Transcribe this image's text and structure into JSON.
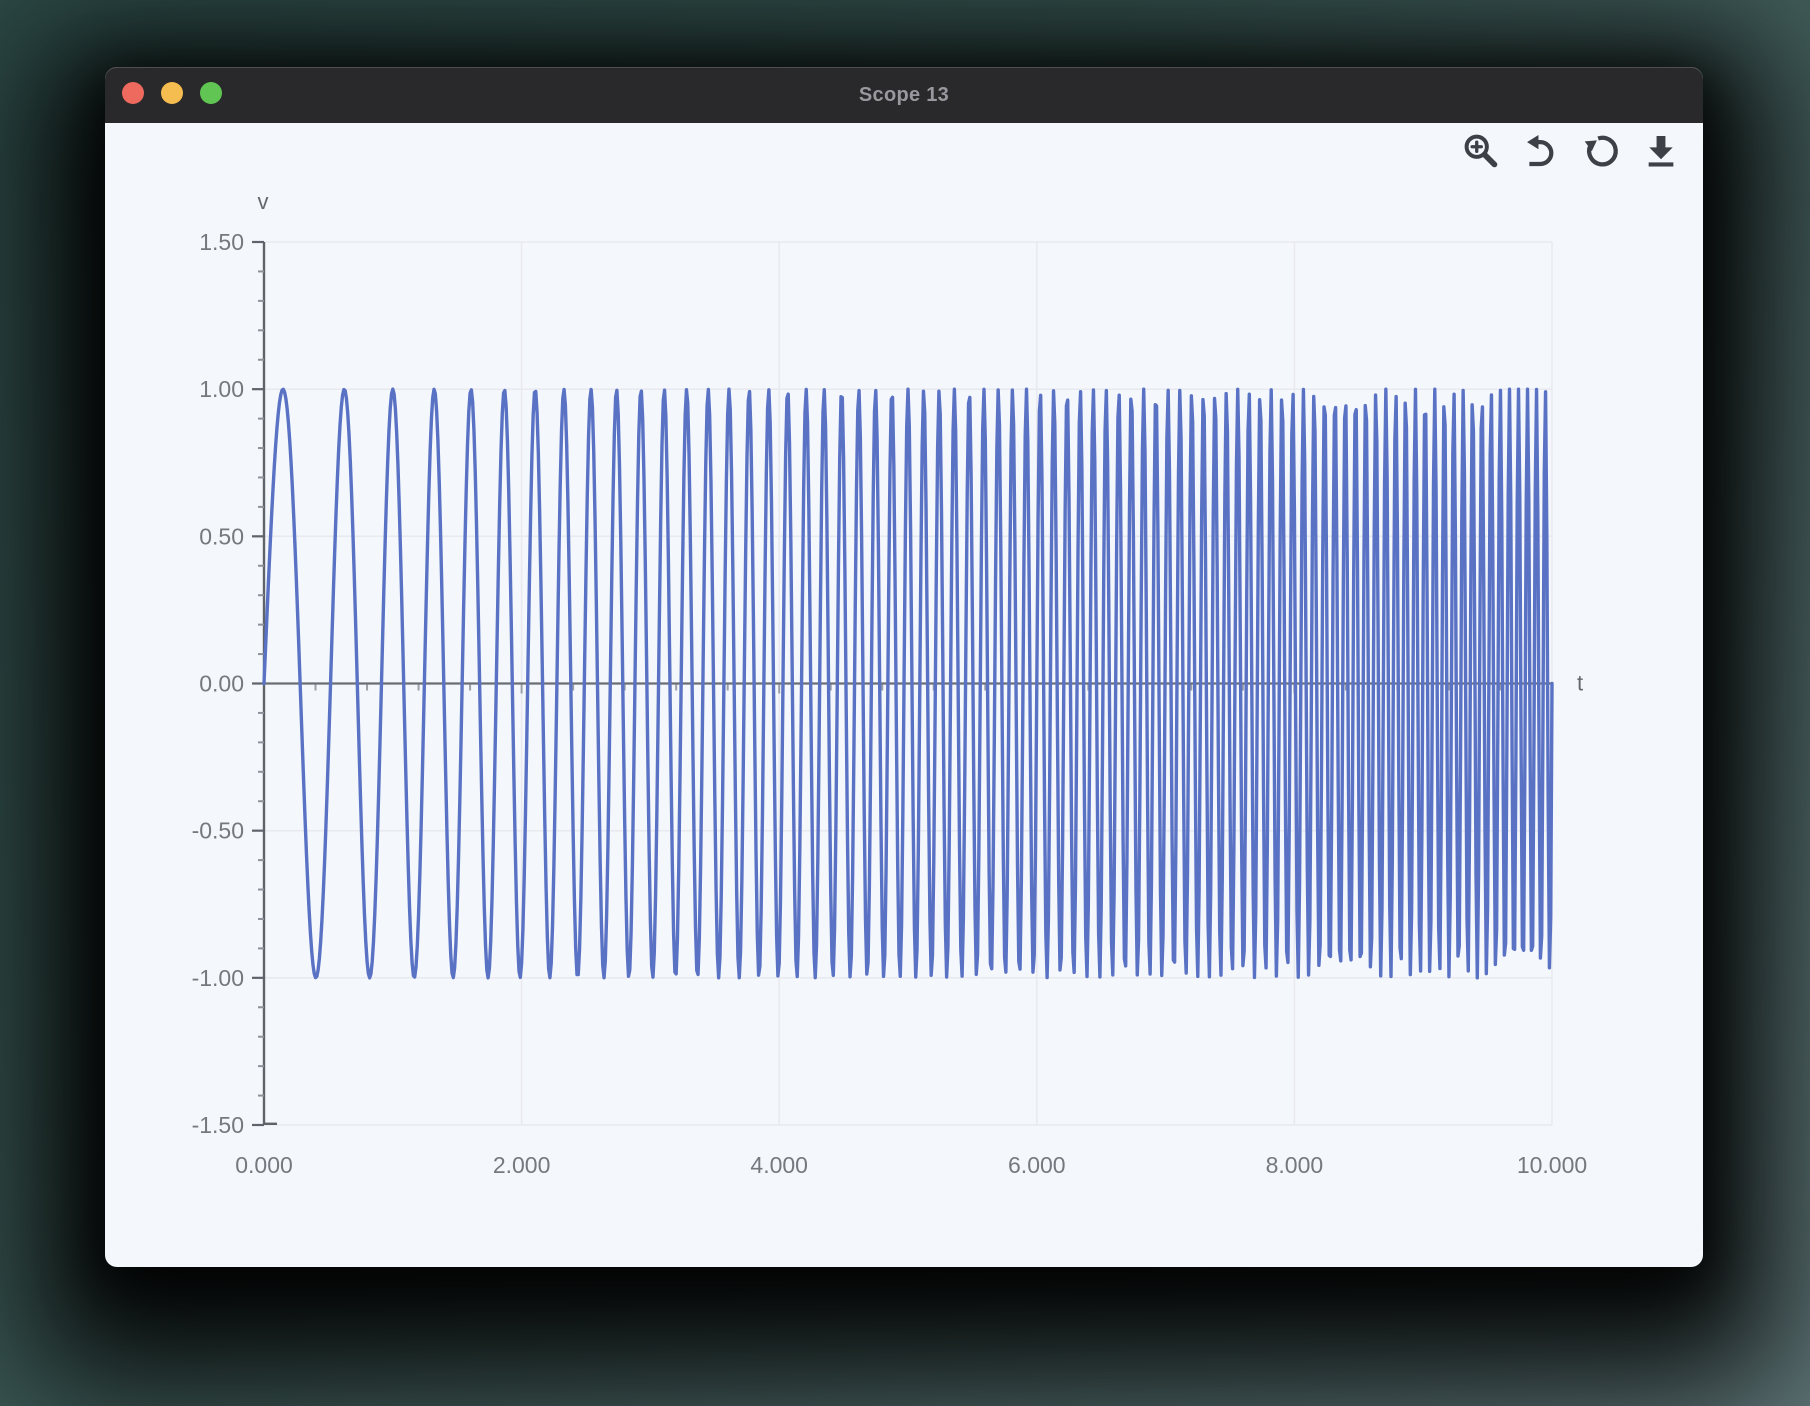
{
  "window": {
    "title": "Scope 13"
  },
  "traffic_lights": {
    "close_color": "#ee6a5f",
    "minimize_color": "#f5bd4f",
    "zoom_color": "#61c554"
  },
  "toolbar": {
    "icon_color": "#3d4046",
    "icons": [
      {
        "name": "zoom-in"
      },
      {
        "name": "undo"
      },
      {
        "name": "reset-view"
      },
      {
        "name": "download"
      }
    ]
  },
  "chart_data": {
    "type": "line",
    "title": "",
    "xlabel": "t",
    "ylabel": "v",
    "xlim": [
      0,
      10
    ],
    "ylim": [
      -1.5,
      1.5
    ],
    "grid": true,
    "x_ticks": {
      "values": [
        0,
        2,
        4,
        6,
        8,
        10
      ],
      "labels": [
        "0.000",
        "2.000",
        "4.000",
        "6.000",
        "8.000",
        "10.000"
      ],
      "minor_step": 0.4
    },
    "y_ticks": {
      "values": [
        1.5,
        1.0,
        0.5,
        0.0,
        -0.5,
        -1.0,
        -1.5
      ],
      "labels": [
        "1.50",
        "1.00",
        "0.50",
        "0.00",
        "-0.50",
        "-1.00",
        "-1.50"
      ],
      "minor_step": 0.1
    },
    "series": [
      {
        "name": "v",
        "signal": "linear_chirp",
        "formula": "v(t) = amplitude * sin(2*pi*(f0*t + k/2*t^2))",
        "amplitude": 1.0,
        "f0": 1.6,
        "k": 1.3,
        "t_start": 0,
        "t_end": 10,
        "sample_dt": 0.01,
        "color": "#5a72c4",
        "stroke_width": 3.4
      }
    ],
    "axis_color": "#5f636a",
    "zero_axis_color": "#6a6e74",
    "grid_color": "#e9eaef",
    "minor_tick_color": "#9aa0a8",
    "label_color": "#75797f"
  }
}
